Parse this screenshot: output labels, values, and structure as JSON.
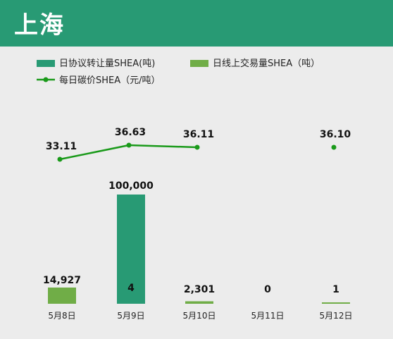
{
  "header": {
    "title": "上海"
  },
  "colors": {
    "header_bg": "#289a74",
    "agreement": "#289a74",
    "online": "#70ad47",
    "price": "#1a9a1a"
  },
  "chart_data": {
    "type": "bar",
    "categories": [
      "5月8日",
      "5月9日",
      "5月10日",
      "5月11日",
      "5月12日"
    ],
    "series": [
      {
        "name": "日协议转让量SHEA(吨)",
        "type": "bar",
        "values": [
          0,
          100000,
          0,
          0,
          0
        ],
        "labels": [
          "",
          "100,000",
          "",
          "",
          ""
        ]
      },
      {
        "name": "日线上交易量SHEA（吨）",
        "type": "bar",
        "values": [
          14927,
          4,
          2301,
          0,
          1
        ],
        "labels": [
          "14,927",
          "4",
          "2,301",
          "0",
          "1"
        ]
      },
      {
        "name": "每日碳价SHEA（元/吨）",
        "type": "line",
        "values": [
          33.11,
          36.63,
          36.11,
          null,
          36.1
        ],
        "labels": [
          "33.11",
          "36.63",
          "36.11",
          "",
          "36.10"
        ]
      }
    ],
    "legend_position": "top-left",
    "grid": false
  }
}
